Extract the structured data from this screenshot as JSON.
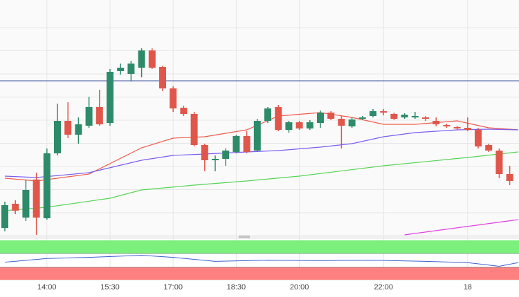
{
  "chart_data": {
    "type": "candlestick",
    "x": [
      0,
      1,
      2,
      3,
      4,
      5,
      6,
      7,
      8,
      9,
      10,
      11,
      12,
      13,
      14,
      15,
      16,
      17,
      18,
      19,
      20,
      21,
      22,
      23,
      24,
      25,
      26,
      27,
      28,
      29,
      30,
      31,
      32,
      33,
      34,
      35,
      36,
      37,
      38,
      39,
      40,
      41,
      42,
      43,
      44,
      45,
      46,
      47,
      48
    ],
    "open": [
      10,
      45,
      25,
      80,
      24,
      118,
      165,
      145,
      158,
      185,
      162,
      237,
      233,
      242,
      267,
      243,
      212,
      184,
      175,
      130,
      108,
      110,
      120,
      143,
      122,
      165,
      185,
      152,
      163,
      154,
      162,
      177,
      168,
      157,
      168,
      172,
      179,
      175,
      170,
      170,
      170,
      165,
      159,
      156,
      155,
      152,
      130,
      122,
      88
    ],
    "high": [
      48,
      50,
      80,
      90,
      125,
      190,
      192,
      170,
      200,
      210,
      240,
      248,
      252,
      270,
      270,
      245,
      215,
      187,
      178,
      132,
      115,
      125,
      145,
      150,
      168,
      185,
      188,
      165,
      165,
      166,
      180,
      179,
      172,
      170,
      172,
      182,
      182,
      177,
      176,
      178,
      172,
      170,
      161,
      158,
      170,
      155,
      132,
      125,
      100
    ],
    "low": [
      5,
      30,
      20,
      0,
      22,
      115,
      140,
      132,
      155,
      158,
      158,
      232,
      222,
      228,
      240,
      208,
      178,
      172,
      128,
      92,
      92,
      100,
      118,
      118,
      120,
      162,
      150,
      148,
      152,
      152,
      155,
      166,
      125,
      155,
      166,
      170,
      173,
      166,
      168,
      168,
      165,
      157,
      155,
      152,
      150,
      125,
      120,
      82,
      72
    ],
    "close": [
      43,
      35,
      65,
      25,
      118,
      165,
      145,
      160,
      185,
      160,
      236,
      242,
      248,
      267,
      242,
      212,
      183,
      175,
      130,
      108,
      110,
      122,
      143,
      120,
      165,
      183,
      152,
      163,
      154,
      163,
      177,
      168,
      158,
      167,
      170,
      179,
      177,
      168,
      174,
      172,
      168,
      160,
      157,
      154,
      152,
      128,
      122,
      88,
      78
    ],
    "up_color": "#2e8b6a",
    "down_color": "#e0564a",
    "xlim": [
      -0.46,
      48.88
    ],
    "ylim": [
      0,
      340
    ],
    "xticks": [
      {
        "value": 4,
        "label": "14:00"
      },
      {
        "value": 10,
        "label": "15:30"
      },
      {
        "value": 16,
        "label": "17:00"
      },
      {
        "value": 22,
        "label": "18:30"
      },
      {
        "value": 28,
        "label": "20:00"
      },
      {
        "value": 36,
        "label": "22:00"
      },
      {
        "value": 44,
        "label": "18"
      }
    ],
    "grid": true,
    "hline": {
      "value": 223,
      "color": "#3b4f9e"
    },
    "lines": [
      {
        "color": "#f05a4a",
        "x": [
          0,
          3,
          8,
          13,
          16,
          19,
          23,
          26,
          30,
          33,
          36,
          39,
          43,
          46,
          48.8
        ],
        "values": [
          82,
          78,
          88,
          126,
          140,
          142,
          152,
          172,
          177,
          170,
          160,
          160,
          165,
          155,
          152
        ]
      },
      {
        "color": "#7b5cf0",
        "x": [
          0,
          3,
          8,
          13,
          16,
          19,
          23,
          26,
          30,
          33,
          36,
          39,
          43,
          46,
          48.8
        ],
        "values": [
          85,
          83,
          90,
          108,
          115,
          117,
          120,
          122,
          127,
          132,
          142,
          148,
          152,
          153,
          152
        ]
      },
      {
        "color": "#55d455",
        "x": [
          0,
          4,
          10,
          13,
          18,
          23,
          28,
          36,
          44,
          48.8
        ],
        "values": [
          35,
          40,
          53,
          65,
          72,
          78,
          85,
          100,
          112,
          120
        ]
      },
      {
        "color": "#e040e0",
        "x": [
          38,
          48.8
        ],
        "values": [
          0,
          22
        ]
      }
    ],
    "oscillator": {
      "color": "#3a5fd0",
      "ylim": [
        0,
        100
      ],
      "upper_color": "#7cf07c",
      "lower_color": "#ff8080",
      "x": [
        0,
        4,
        8,
        13,
        16,
        20,
        25,
        30,
        35,
        40,
        44,
        47,
        48.8
      ],
      "values": [
        43,
        52,
        55,
        60,
        55,
        45,
        48,
        47,
        48,
        45,
        42,
        33,
        42
      ]
    }
  }
}
